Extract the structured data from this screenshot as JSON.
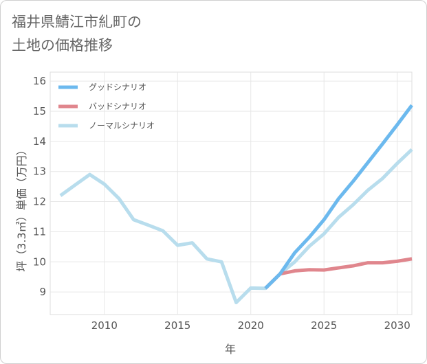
{
  "title_line1": "福井県鯖江市糺町の",
  "title_line2": "土地の価格推移",
  "chart_data": {
    "type": "line",
    "xlabel": "年",
    "ylabel": "坪（3.3㎡）単価（万円）",
    "xlim": [
      2006.3,
      2031
    ],
    "ylim": [
      8.25,
      16.3
    ],
    "x_ticks": [
      2010,
      2015,
      2020,
      2025,
      2030
    ],
    "y_ticks": [
      9,
      10,
      11,
      12,
      13,
      14,
      15,
      16
    ],
    "grid": true,
    "legend_position": "top-left",
    "series": [
      {
        "name": "グッドシナリオ",
        "color": "#6cb9ee",
        "points": [
          [
            2021,
            9.12
          ],
          [
            2022,
            9.6
          ],
          [
            2023,
            10.3
          ],
          [
            2024,
            10.82
          ],
          [
            2025,
            11.4
          ],
          [
            2026,
            12.1
          ],
          [
            2027,
            12.68
          ],
          [
            2028,
            13.3
          ],
          [
            2029,
            13.92
          ],
          [
            2030,
            14.55
          ],
          [
            2031,
            15.2
          ]
        ]
      },
      {
        "name": "バッドシナリオ",
        "color": "#e0868d",
        "points": [
          [
            2021,
            9.12
          ],
          [
            2022,
            9.6
          ],
          [
            2023,
            9.7
          ],
          [
            2024,
            9.74
          ],
          [
            2025,
            9.73
          ],
          [
            2026,
            9.8
          ],
          [
            2027,
            9.87
          ],
          [
            2028,
            9.97
          ],
          [
            2029,
            9.97
          ],
          [
            2030,
            10.02
          ],
          [
            2031,
            10.1
          ]
        ]
      },
      {
        "name": "ノーマルシナリオ",
        "color": "#b8dded",
        "points": [
          [
            2007,
            12.2
          ],
          [
            2008,
            12.55
          ],
          [
            2009,
            12.9
          ],
          [
            2010,
            12.58
          ],
          [
            2011,
            12.1
          ],
          [
            2012,
            11.4
          ],
          [
            2013,
            11.22
          ],
          [
            2014,
            11.03
          ],
          [
            2015,
            10.55
          ],
          [
            2016,
            10.63
          ],
          [
            2017,
            10.1
          ],
          [
            2018,
            10.0
          ],
          [
            2019,
            8.65
          ],
          [
            2020,
            9.13
          ],
          [
            2021,
            9.12
          ],
          [
            2022,
            9.6
          ],
          [
            2023,
            10.0
          ],
          [
            2024,
            10.52
          ],
          [
            2025,
            10.93
          ],
          [
            2026,
            11.48
          ],
          [
            2027,
            11.9
          ],
          [
            2028,
            12.38
          ],
          [
            2029,
            12.77
          ],
          [
            2030,
            13.27
          ],
          [
            2031,
            13.73
          ]
        ]
      }
    ]
  }
}
